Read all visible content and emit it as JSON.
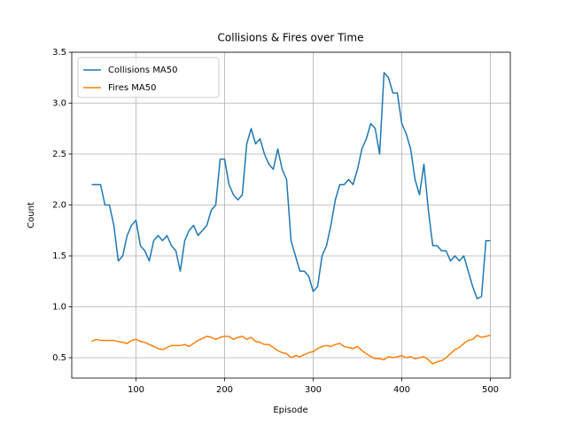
{
  "chart_data": {
    "type": "line",
    "title": "Collisions & Fires over Time",
    "xlabel": "Episode",
    "ylabel": "Count",
    "x": [
      50,
      55,
      60,
      65,
      70,
      75,
      80,
      85,
      90,
      95,
      100,
      105,
      110,
      115,
      120,
      125,
      130,
      135,
      140,
      145,
      150,
      155,
      160,
      165,
      170,
      175,
      180,
      185,
      190,
      195,
      200,
      205,
      210,
      215,
      220,
      225,
      230,
      235,
      240,
      245,
      250,
      255,
      260,
      265,
      270,
      275,
      280,
      285,
      290,
      295,
      300,
      305,
      310,
      315,
      320,
      325,
      330,
      335,
      340,
      345,
      350,
      355,
      360,
      365,
      370,
      375,
      380,
      385,
      390,
      395,
      400,
      405,
      410,
      415,
      420,
      425,
      430,
      435,
      440,
      445,
      450,
      455,
      460,
      465,
      470,
      475,
      480,
      485,
      490,
      495,
      500
    ],
    "series": [
      {
        "name": "Collisions MA50",
        "color": "#1f77b4",
        "values": [
          2.2,
          2.2,
          2.2,
          2.0,
          2.0,
          1.8,
          1.45,
          1.5,
          1.7,
          1.8,
          1.85,
          1.6,
          1.55,
          1.45,
          1.65,
          1.7,
          1.65,
          1.7,
          1.6,
          1.55,
          1.35,
          1.65,
          1.75,
          1.8,
          1.7,
          1.75,
          1.8,
          1.95,
          2.0,
          2.45,
          2.45,
          2.2,
          2.1,
          2.05,
          2.1,
          2.6,
          2.75,
          2.6,
          2.65,
          2.5,
          2.4,
          2.35,
          2.55,
          2.35,
          2.25,
          1.65,
          1.5,
          1.35,
          1.35,
          1.3,
          1.15,
          1.2,
          1.5,
          1.6,
          1.8,
          2.05,
          2.2,
          2.2,
          2.25,
          2.2,
          2.35,
          2.55,
          2.65,
          2.8,
          2.75,
          2.5,
          3.3,
          3.25,
          3.1,
          3.1,
          2.8,
          2.7,
          2.55,
          2.25,
          2.1,
          2.4,
          1.95,
          1.6,
          1.6,
          1.55,
          1.55,
          1.45,
          1.5,
          1.45,
          1.5,
          1.35,
          1.2,
          1.08,
          1.1,
          1.65,
          1.65
        ]
      },
      {
        "name": "Fires MA50",
        "color": "#ff7f0e",
        "values": [
          0.66,
          0.68,
          0.67,
          0.67,
          0.67,
          0.67,
          0.66,
          0.65,
          0.64,
          0.67,
          0.68,
          0.66,
          0.65,
          0.63,
          0.61,
          0.59,
          0.58,
          0.6,
          0.62,
          0.62,
          0.62,
          0.63,
          0.61,
          0.64,
          0.67,
          0.69,
          0.71,
          0.7,
          0.68,
          0.7,
          0.71,
          0.71,
          0.68,
          0.7,
          0.71,
          0.68,
          0.7,
          0.66,
          0.65,
          0.63,
          0.63,
          0.6,
          0.57,
          0.55,
          0.54,
          0.5,
          0.52,
          0.51,
          0.53,
          0.55,
          0.56,
          0.59,
          0.61,
          0.62,
          0.61,
          0.63,
          0.64,
          0.61,
          0.6,
          0.59,
          0.61,
          0.57,
          0.54,
          0.51,
          0.49,
          0.49,
          0.48,
          0.51,
          0.5,
          0.51,
          0.52,
          0.5,
          0.51,
          0.49,
          0.5,
          0.51,
          0.48,
          0.44,
          0.46,
          0.47,
          0.5,
          0.54,
          0.58,
          0.6,
          0.64,
          0.67,
          0.68,
          0.72,
          0.7,
          0.71,
          0.72
        ]
      }
    ],
    "xlim": [
      27.5,
      522.5
    ],
    "ylim": [
      0.3,
      3.5
    ],
    "xticks": [
      100,
      200,
      300,
      400,
      500
    ],
    "yticks": [
      0.5,
      {
        "value": 1.0,
        "label": "1.0"
      },
      1.5,
      {
        "value": 2.0,
        "label": "2.0"
      },
      2.5,
      {
        "value": 3.0,
        "label": "3.0"
      },
      3.5
    ],
    "grid": true,
    "legend": "upper left"
  }
}
